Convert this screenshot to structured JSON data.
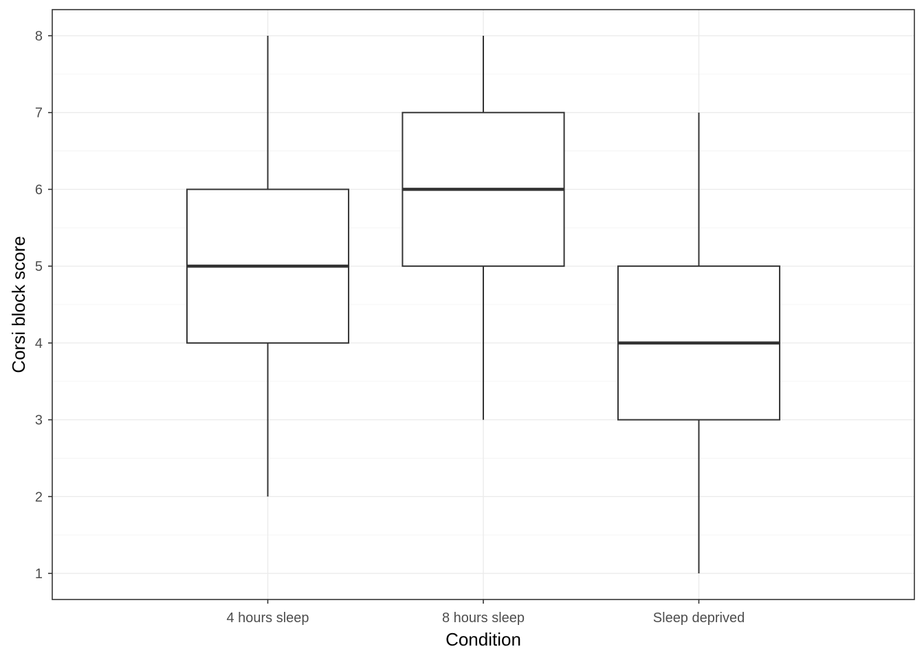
{
  "chart_data": {
    "type": "boxplot",
    "title": "",
    "xlabel": "Condition",
    "ylabel": "Corsi block score",
    "categories": [
      "4 hours sleep",
      "8 hours sleep",
      "Sleep deprived"
    ],
    "boxes": [
      {
        "category": "4 hours sleep",
        "min": 2,
        "q1": 4,
        "median": 5,
        "q3": 6,
        "max": 8
      },
      {
        "category": "8 hours sleep",
        "min": 3,
        "q1": 5,
        "median": 6,
        "q3": 7,
        "max": 8
      },
      {
        "category": "Sleep deprived",
        "min": 1,
        "q1": 3,
        "median": 4,
        "q3": 5,
        "max": 7
      }
    ],
    "ylim": [
      0.66,
      8.34
    ],
    "yticks": [
      "1",
      "2",
      "3",
      "4",
      "5",
      "6",
      "7",
      "8"
    ],
    "grid": true,
    "colors": {
      "box_line": "#333333",
      "box_fill": "#ffffff",
      "grid": "#ebebeb"
    }
  }
}
